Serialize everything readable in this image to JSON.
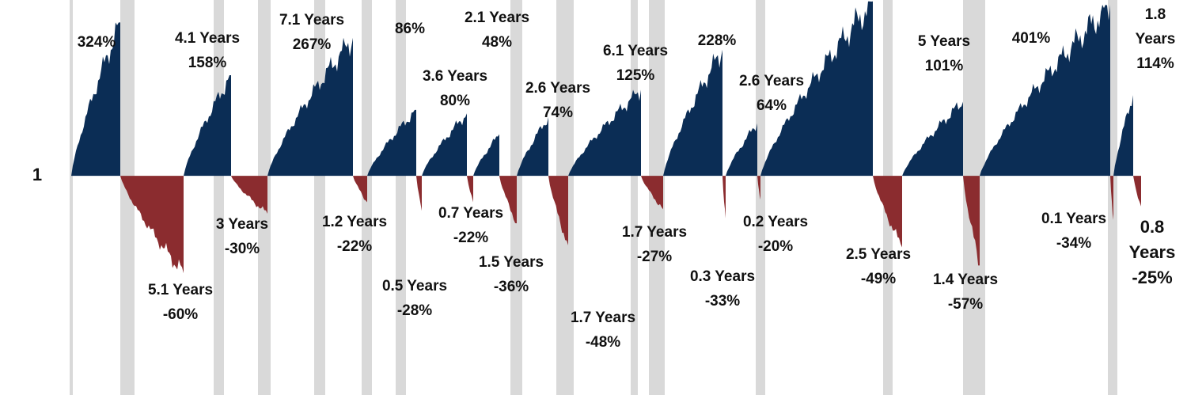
{
  "chart_data": {
    "type": "area",
    "values": [
      324,
      -60,
      158,
      -30,
      267,
      -22,
      86,
      -28,
      80,
      -22,
      48,
      -36,
      74,
      -48,
      125,
      -27,
      228,
      -33,
      64,
      -20,
      417,
      -49,
      101,
      -57,
      401,
      -34,
      114,
      -25
    ],
    "value_labels": [
      "324%",
      "-60%",
      "158%",
      "-30%",
      "267%",
      "-22%",
      "86%",
      "-28%",
      "80%",
      "-22%",
      "48%",
      "-36%",
      "74%",
      "-48%",
      "125%",
      "-27%",
      "228%",
      "-33%",
      "64%",
      "-20%",
      null,
      "-49%",
      "101%",
      "-57%",
      "401%",
      "-34%",
      "114%",
      "-25%"
    ],
    "durations": [
      null,
      "5.1 Years",
      "4.1 Years",
      "3 Years",
      "7.1 Years",
      "1.2 Years",
      null,
      "0.5 Years",
      "3.6 Years",
      "0.7 Years",
      "2.1 Years",
      "1.5 Years",
      "2.6 Years",
      "1.7 Years",
      "6.1 Years",
      "1.7 Years",
      null,
      "0.3 Years",
      "2.6 Years",
      "0.2 Years",
      null,
      "2.5 Years",
      "5 Years",
      "1.4 Years",
      null,
      "0.1 Years",
      "1.8 Years",
      "0.8 Years"
    ],
    "colors": {
      "up": "#0b2d55",
      "down": "#8b2c2f"
    },
    "log_scale": true,
    "ylim": [
      0.127,
      5.24
    ],
    "yticks": [
      1
    ]
  }
}
